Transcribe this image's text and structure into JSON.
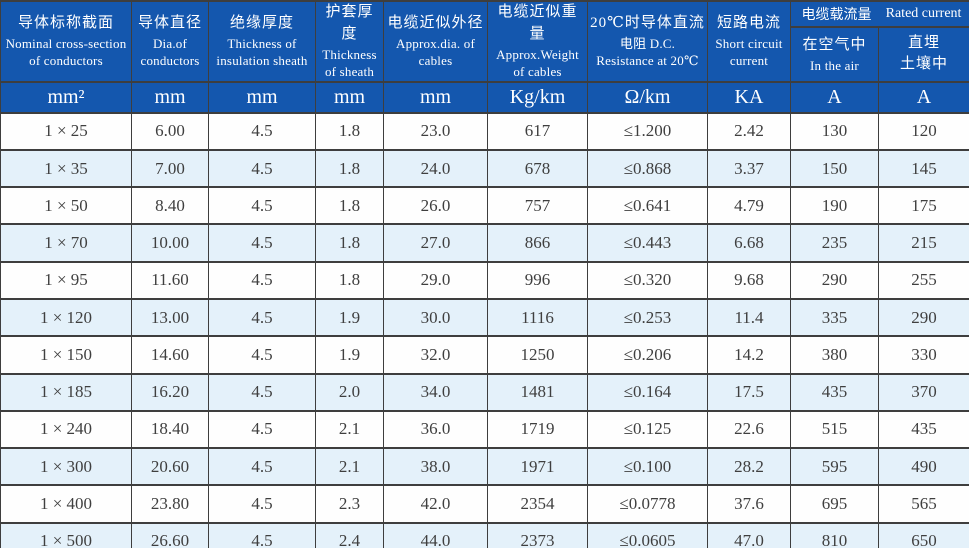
{
  "table": {
    "columns": [
      {
        "lines": [
          "导体标称截面",
          "Nominal cross-section",
          "of conductors"
        ],
        "unit": "mm²"
      },
      {
        "lines": [
          "导体直径",
          "Dia.of",
          "conductors"
        ],
        "unit": "mm"
      },
      {
        "lines": [
          "绝缘厚度",
          "Thickness of",
          "insulation sheath"
        ],
        "unit": "mm"
      },
      {
        "lines": [
          "护套厚度",
          "Thickness",
          "of sheath"
        ],
        "unit": "mm"
      },
      {
        "lines": [
          "电缆近似外径",
          "Approx.dia. of",
          "cables"
        ],
        "unit": "mm"
      },
      {
        "lines": [
          "电缆近似重量",
          "Approx.Weight",
          "of cables"
        ],
        "unit": "Kg/km"
      },
      {
        "lines": [
          "20℃时导体直流",
          "电阻 D.C.",
          "Resistance at 20℃"
        ],
        "unit": "Ω/km"
      },
      {
        "lines": [
          "短路电流",
          "Short circuit",
          "current"
        ],
        "unit": "KA"
      }
    ],
    "group": {
      "zh": "电缆载流量",
      "en": "Rated current"
    },
    "sub_columns": [
      {
        "line1": "在空气中",
        "line2": "In the air",
        "unit": "A"
      },
      {
        "line1": "直埋",
        "line2": "土壤中",
        "unit": "A"
      }
    ],
    "units": [
      "mm²",
      "mm",
      "mm",
      "mm",
      "mm",
      "Kg/km",
      "Ω/km",
      "KA",
      "A",
      "A"
    ],
    "rows": [
      [
        "1 × 25",
        "6.00",
        "4.5",
        "1.8",
        "23.0",
        "617",
        "≤1.200",
        "2.42",
        "130",
        "120"
      ],
      [
        "1 × 35",
        "7.00",
        "4.5",
        "1.8",
        "24.0",
        "678",
        "≤0.868",
        "3.37",
        "150",
        "145"
      ],
      [
        "1 × 50",
        "8.40",
        "4.5",
        "1.8",
        "26.0",
        "757",
        "≤0.641",
        "4.79",
        "190",
        "175"
      ],
      [
        "1 × 70",
        "10.00",
        "4.5",
        "1.8",
        "27.0",
        "866",
        "≤0.443",
        "6.68",
        "235",
        "215"
      ],
      [
        "1 × 95",
        "11.60",
        "4.5",
        "1.8",
        "29.0",
        "996",
        "≤0.320",
        "9.68",
        "290",
        "255"
      ],
      [
        "1 × 120",
        "13.00",
        "4.5",
        "1.9",
        "30.0",
        "1116",
        "≤0.253",
        "11.4",
        "335",
        "290"
      ],
      [
        "1 × 150",
        "14.60",
        "4.5",
        "1.9",
        "32.0",
        "1250",
        "≤0.206",
        "14.2",
        "380",
        "330"
      ],
      [
        "1 × 185",
        "16.20",
        "4.5",
        "2.0",
        "34.0",
        "1481",
        "≤0.164",
        "17.5",
        "435",
        "370"
      ],
      [
        "1 × 240",
        "18.40",
        "4.5",
        "2.1",
        "36.0",
        "1719",
        "≤0.125",
        "22.6",
        "515",
        "435"
      ],
      [
        "1 × 300",
        "20.60",
        "4.5",
        "2.1",
        "38.0",
        "1971",
        "≤0.100",
        "28.2",
        "595",
        "490"
      ],
      [
        "1 × 400",
        "23.80",
        "4.5",
        "2.3",
        "42.0",
        "2354",
        "≤0.0778",
        "37.6",
        "695",
        "565"
      ],
      [
        "1 × 500",
        "26.60",
        "4.5",
        "2.4",
        "44.0",
        "2373",
        "≤0.0605",
        "47.0",
        "810",
        "650"
      ]
    ],
    "colors": {
      "header_bg": "#1457ae",
      "row_bg": "#fefefe",
      "row_alt_bg": "#e4f1fa",
      "grid": "#3e3e3e",
      "header_text": "#ffffff",
      "cell_text": "#3f3f3f"
    }
  }
}
